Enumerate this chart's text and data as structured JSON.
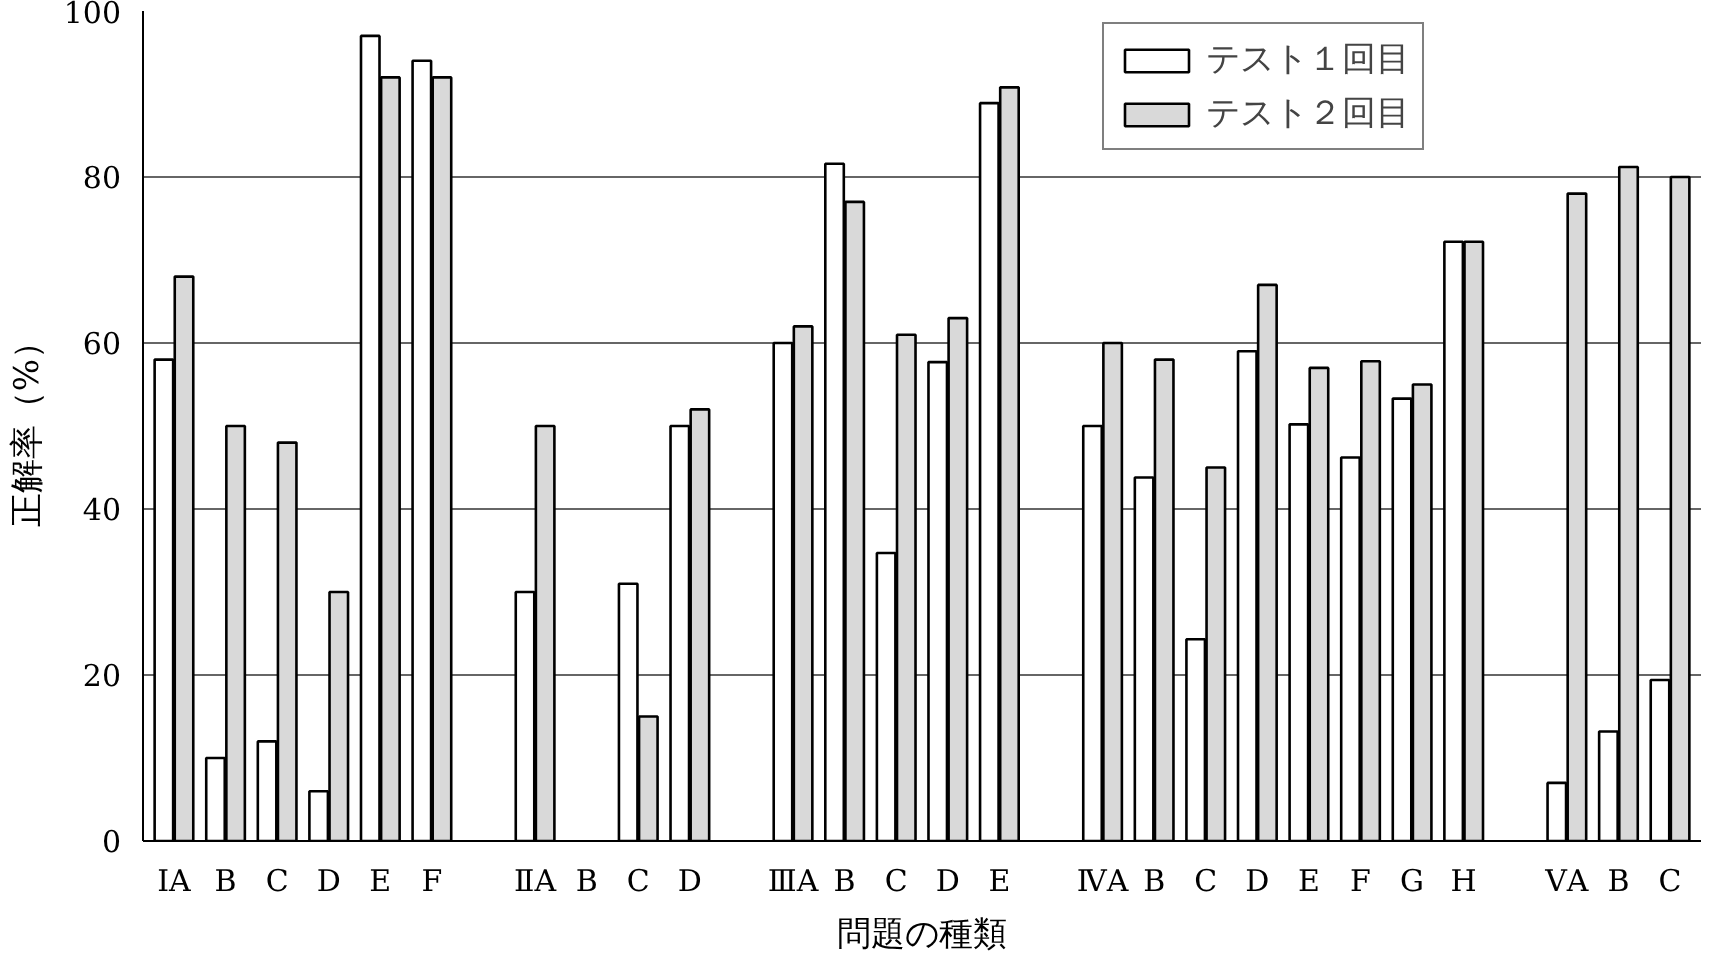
{
  "chart_data": {
    "type": "bar",
    "xlabel": "問題の種類",
    "ylabel": "正解率（%）",
    "categories": [
      "ⅠA",
      "B",
      "C",
      "D",
      "E",
      "F",
      null,
      "ⅡA",
      "B",
      "C",
      "D",
      null,
      "ⅢA",
      "B",
      "C",
      "D",
      "E",
      null,
      "ⅣA",
      "B",
      "C",
      "D",
      "E",
      "F",
      "G",
      "H",
      null,
      "ⅤA",
      "B",
      "C"
    ],
    "series": [
      {
        "name": "テスト１回目",
        "color": "#ffffff",
        "values": [
          58,
          10,
          12,
          6,
          97,
          94,
          null,
          30,
          null,
          31,
          50,
          null,
          60,
          81.6,
          34.7,
          57.7,
          88.9,
          null,
          50,
          43.8,
          24.3,
          59,
          50.2,
          46.2,
          53.3,
          72.2,
          null,
          7,
          13.2,
          19.4
        ]
      },
      {
        "name": "テスト２回目",
        "color": "#d9d9d9",
        "values": [
          68,
          50,
          48,
          30,
          92,
          92,
          null,
          50,
          null,
          15,
          52,
          null,
          62,
          77,
          61,
          63,
          90.8,
          null,
          60,
          58,
          45,
          67,
          57,
          57.8,
          55,
          72.2,
          null,
          78,
          81.2,
          80
        ]
      }
    ],
    "ylim": [
      0,
      100
    ],
    "yticks": [
      0,
      20,
      40,
      60,
      80,
      100
    ],
    "grid": "y",
    "legend": "top right"
  }
}
